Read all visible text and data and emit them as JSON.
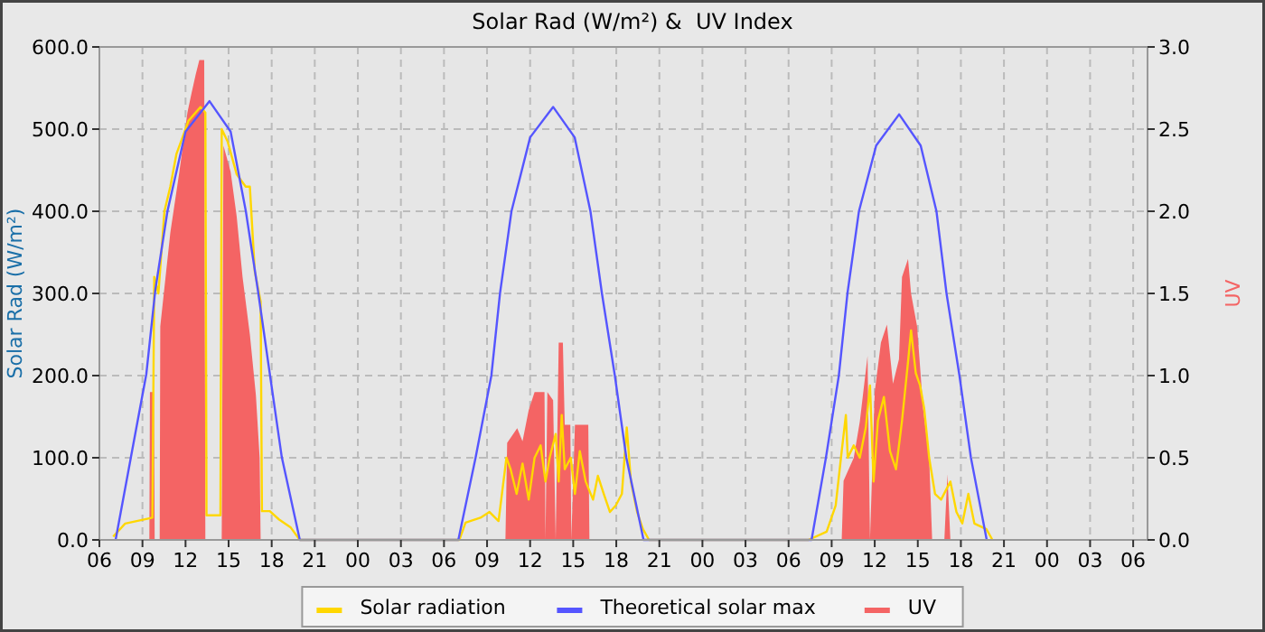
{
  "chart_data": {
    "type": "line",
    "title": "Solar Rad (W/m²) &  UV Index",
    "ylabel": "Solar Rad (W/m²)",
    "y2label": "UV",
    "xlim": [
      6,
      79
    ],
    "xticks": [
      {
        "value": 6,
        "label": "06"
      },
      {
        "value": 9,
        "label": "09"
      },
      {
        "value": 12,
        "label": "12"
      },
      {
        "value": 15,
        "label": "15"
      },
      {
        "value": 18,
        "label": "18"
      },
      {
        "value": 21,
        "label": "21"
      },
      {
        "value": 24,
        "label": "00"
      },
      {
        "value": 27,
        "label": "03"
      },
      {
        "value": 30,
        "label": "06"
      },
      {
        "value": 33,
        "label": "09"
      },
      {
        "value": 36,
        "label": "12"
      },
      {
        "value": 39,
        "label": "15"
      },
      {
        "value": 42,
        "label": "18"
      },
      {
        "value": 45,
        "label": "21"
      },
      {
        "value": 48,
        "label": "00"
      },
      {
        "value": 51,
        "label": "03"
      },
      {
        "value": 54,
        "label": "06"
      },
      {
        "value": 57,
        "label": "09"
      },
      {
        "value": 60,
        "label": "12"
      },
      {
        "value": 63,
        "label": "15"
      },
      {
        "value": 66,
        "label": "18"
      },
      {
        "value": 69,
        "label": "21"
      },
      {
        "value": 72,
        "label": "00"
      },
      {
        "value": 75,
        "label": "03"
      },
      {
        "value": 78,
        "label": "06"
      }
    ],
    "ylim": [
      0,
      600
    ],
    "yticks": [
      {
        "value": 0,
        "label": "0.0"
      },
      {
        "value": 100,
        "label": "100.0"
      },
      {
        "value": 200,
        "label": "200.0"
      },
      {
        "value": 300,
        "label": "300.0"
      },
      {
        "value": 400,
        "label": "400.0"
      },
      {
        "value": 500,
        "label": "500.0"
      },
      {
        "value": 600,
        "label": "600.0"
      }
    ],
    "y2lim": [
      0,
      3
    ],
    "y2ticks": [
      {
        "value": 0,
        "label": "0.0"
      },
      {
        "value": 0.5,
        "label": "0.5"
      },
      {
        "value": 1,
        "label": "1.0"
      },
      {
        "value": 1.5,
        "label": "1.5"
      },
      {
        "value": 2,
        "label": "2.0"
      },
      {
        "value": 2.5,
        "label": "2.5"
      },
      {
        "value": 3,
        "label": "3.0"
      }
    ],
    "grid": true,
    "legend": "bottom",
    "series": [
      {
        "name": "Solar radiation",
        "color": "#ffd700",
        "x": [
          6.96,
          7.8,
          9.69,
          9.82,
          10.11,
          10.53,
          10.94,
          11.37,
          11.79,
          12.2,
          13.04,
          13.38,
          13.46,
          14.43,
          14.52,
          14.93,
          15.56,
          16.19,
          16.48,
          16.82,
          17.23,
          17.32,
          17.87,
          18.5,
          19.33,
          19.96,
          31.07,
          31.5,
          32.54,
          33.17,
          33.8,
          34.35,
          34.64,
          35.06,
          35.47,
          35.9,
          36.31,
          36.73,
          37.07,
          37.36,
          37.78,
          37.99,
          38.2,
          38.41,
          38.83,
          39.12,
          39.46,
          39.87,
          40.38,
          40.72,
          41.13,
          41.56,
          41.97,
          42.39,
          42.73,
          43.02,
          43.45,
          43.86,
          44.28,
          55.39,
          56.65,
          57.28,
          57.7,
          57.99,
          58.12,
          58.54,
          58.96,
          59.38,
          59.67,
          59.92,
          60.22,
          60.64,
          61.06,
          61.48,
          61.9,
          62.32,
          62.53,
          62.86,
          63.16,
          63.45,
          63.79,
          64.2,
          64.62,
          65.27,
          65.69,
          66.1,
          66.52,
          66.94,
          67.78,
          68.2
        ],
        "values": [
          4,
          20,
          27,
          320,
          300,
          400,
          430,
          470,
          490,
          510,
          527,
          520,
          30,
          30,
          500,
          485,
          445,
          430,
          430,
          327,
          290,
          35,
          35,
          25,
          15,
          0,
          0,
          21,
          27,
          34,
          23,
          100,
          86,
          56,
          93,
          49,
          100,
          115,
          71,
          100,
          129,
          71,
          152,
          86,
          100,
          56,
          108,
          71,
          49,
          78,
          56,
          34,
          42,
          56,
          137,
          71,
          34,
          13,
          0,
          0,
          10,
          42,
          108,
          152,
          100,
          115,
          100,
          137,
          188,
          71,
          145,
          174,
          108,
          86,
          145,
          217,
          255,
          203,
          188,
          159,
          100,
          56,
          49,
          71,
          34,
          20,
          56,
          20,
          13,
          0
        ]
      },
      {
        "name": "Theoretical solar max",
        "color": "#5555ff",
        "x": [
          7.13,
          8.2,
          9.27,
          9.9,
          10.74,
          12.0,
          13.67,
          15.14,
          16.2,
          17.03,
          17.87,
          18.7,
          19.96,
          31.0,
          32.2,
          33.3,
          33.9,
          34.7,
          36.0,
          37.6,
          39.1,
          40.2,
          41.0,
          41.9,
          42.7,
          43.9,
          55.6,
          56.6,
          57.5,
          58.1,
          58.9,
          60.1,
          61.7,
          63.2,
          64.3,
          65.0,
          65.9,
          66.7,
          67.8
        ],
        "values": [
          0,
          101,
          202,
          305,
          400,
          497,
          534,
          497,
          400,
          305,
          202,
          101,
          0,
          0,
          100,
          200,
          300,
          400,
          490,
          527,
          490,
          400,
          300,
          200,
          100,
          0,
          0,
          100,
          200,
          300,
          400,
          480,
          518,
          480,
          400,
          300,
          200,
          100,
          0
        ]
      },
      {
        "name": "UV",
        "type": "area",
        "axis": "y2",
        "color": "#f46464",
        "x": [
          6,
          9.48,
          9.52,
          9.8,
          9.85,
          10.2,
          10.24,
          10.94,
          11.57,
          12.13,
          12.42,
          12.7,
          12.96,
          13.3,
          13.38,
          14.52,
          14.64,
          15.14,
          15.56,
          15.97,
          16.48,
          16.9,
          17.16,
          17.23,
          34.28,
          34.4,
          35.1,
          35.47,
          35.9,
          36.31,
          37.0,
          37.07,
          37.2,
          37.6,
          37.78,
          37.99,
          38.28,
          38.41,
          38.8,
          38.87,
          39.12,
          40.05,
          40.13,
          57.7,
          57.83,
          58.54,
          58.96,
          59.5,
          59.67,
          60.0,
          60.43,
          60.85,
          61.27,
          61.69,
          61.9,
          62.32,
          62.53,
          62.95,
          63.37,
          63.79,
          64.0,
          64.85,
          65.06,
          65.27,
          79
        ],
        "values": [
          0,
          0,
          0.9,
          0.9,
          0,
          0,
          1.3,
          1.87,
          2.24,
          2.6,
          2.72,
          2.83,
          2.92,
          2.92,
          0,
          0,
          2.4,
          2.24,
          1.97,
          1.6,
          1.25,
          0.88,
          0.5,
          0,
          0,
          0.59,
          0.68,
          0.6,
          0.79,
          0.9,
          0.9,
          0,
          0.9,
          0.85,
          0,
          1.2,
          1.2,
          0.7,
          0.7,
          0,
          0.7,
          0.7,
          0,
          0,
          0.36,
          0.5,
          0.72,
          1.12,
          0,
          0.9,
          1.2,
          1.31,
          0.95,
          1.1,
          1.6,
          1.71,
          1.5,
          1.3,
          0.8,
          0.5,
          0,
          0,
          0.4,
          0,
          0
        ]
      }
    ]
  }
}
